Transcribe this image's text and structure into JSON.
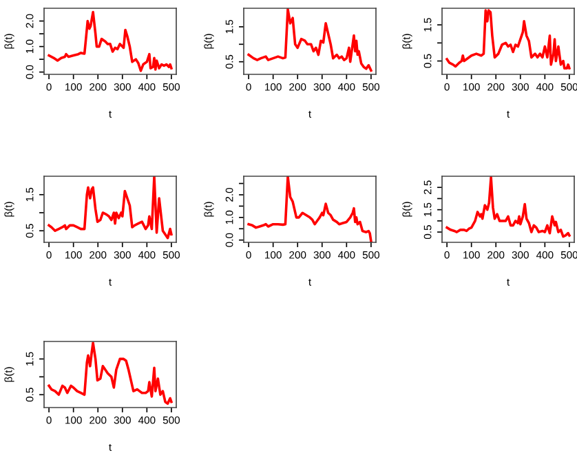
{
  "chart_data": [
    {
      "type": "line",
      "xlabel": "t",
      "ylabel": "β(t)",
      "xlim": [
        -20,
        520
      ],
      "ylim": [
        -0.09,
        2.5
      ],
      "xticks": [
        0,
        100,
        200,
        300,
        400,
        500
      ],
      "yticks": [
        {
          "value": 0.0,
          "label": "0.0"
        },
        {
          "value": 0.5,
          "label": null
        },
        {
          "value": 1.0,
          "label": "1.0"
        },
        {
          "value": 1.5,
          "label": null
        },
        {
          "value": 2.0,
          "label": "2.0"
        }
      ],
      "x": [
        0,
        20,
        35,
        50,
        65,
        70,
        80,
        100,
        120,
        130,
        145,
        150,
        158,
        165,
        170,
        180,
        190,
        195,
        205,
        215,
        230,
        240,
        250,
        260,
        270,
        280,
        290,
        300,
        305,
        312,
        320,
        330,
        340,
        355,
        365,
        375,
        385,
        400,
        410,
        415,
        425,
        430,
        435,
        440,
        450,
        460,
        470,
        480,
        490,
        495,
        500
      ],
      "series": [
        {
          "color": "#ff0000",
          "values": [
            0.65,
            0.55,
            0.45,
            0.55,
            0.6,
            0.7,
            0.6,
            0.65,
            0.7,
            0.75,
            0.72,
            1.2,
            2.0,
            1.7,
            1.8,
            2.35,
            1.5,
            1.0,
            1.0,
            1.3,
            1.2,
            1.1,
            1.1,
            0.8,
            0.95,
            0.9,
            1.1,
            1.0,
            0.95,
            1.65,
            1.4,
            1.0,
            0.4,
            0.5,
            0.35,
            0.05,
            0.3,
            0.4,
            0.7,
            0.15,
            0.2,
            0.55,
            0.1,
            0.45,
            0.15,
            0.3,
            0.25,
            0.3,
            0.2,
            0.3,
            0.15
          ]
        }
      ]
    },
    {
      "type": "line",
      "xlabel": "t",
      "ylabel": "β(t)",
      "xlim": [
        -20,
        520
      ],
      "ylim": [
        0.14,
        2.03
      ],
      "xticks": [
        0,
        100,
        200,
        300,
        400,
        500
      ],
      "yticks": [
        {
          "value": 0.5,
          "label": "0.5"
        },
        {
          "value": 1.0,
          "label": null
        },
        {
          "value": 1.5,
          "label": "1.5"
        }
      ],
      "x": [
        0,
        20,
        35,
        50,
        70,
        80,
        100,
        120,
        140,
        150,
        160,
        170,
        180,
        190,
        200,
        215,
        230,
        240,
        255,
        265,
        275,
        285,
        295,
        305,
        315,
        325,
        335,
        345,
        360,
        370,
        380,
        390,
        400,
        410,
        415,
        425,
        430,
        435,
        440,
        445,
        450,
        460,
        470,
        480,
        490,
        500
      ],
      "series": [
        {
          "color": "#ff0000",
          "values": [
            0.7,
            0.6,
            0.55,
            0.6,
            0.65,
            0.55,
            0.6,
            0.65,
            0.6,
            0.62,
            2.0,
            1.6,
            1.75,
            1.0,
            0.9,
            1.15,
            1.1,
            1.0,
            1.0,
            0.8,
            0.9,
            0.7,
            1.1,
            1.05,
            1.6,
            1.3,
            1.0,
            0.6,
            0.7,
            0.6,
            0.65,
            0.55,
            0.6,
            0.9,
            0.5,
            1.0,
            1.25,
            0.8,
            1.1,
            0.7,
            0.8,
            0.45,
            0.35,
            0.3,
            0.4,
            0.25
          ]
        }
      ]
    },
    {
      "type": "line",
      "xlabel": "t",
      "ylabel": "β(t)",
      "xlim": [
        -20,
        520
      ],
      "ylim": [
        0.13,
        1.96
      ],
      "xticks": [
        0,
        100,
        200,
        300,
        400,
        500
      ],
      "yticks": [
        {
          "value": 0.5,
          "label": "0.5"
        },
        {
          "value": 1.0,
          "label": null
        },
        {
          "value": 1.5,
          "label": "1.5"
        }
      ],
      "x": [
        0,
        10,
        25,
        35,
        50,
        60,
        65,
        70,
        80,
        100,
        120,
        140,
        150,
        158,
        165,
        170,
        178,
        185,
        195,
        210,
        225,
        240,
        250,
        260,
        270,
        280,
        290,
        300,
        310,
        315,
        325,
        335,
        345,
        360,
        370,
        380,
        390,
        400,
        410,
        420,
        425,
        435,
        440,
        445,
        455,
        465,
        475,
        480,
        490,
        495,
        500
      ],
      "series": [
        {
          "color": "#ff0000",
          "values": [
            0.55,
            0.45,
            0.4,
            0.35,
            0.45,
            0.5,
            0.65,
            0.5,
            0.55,
            0.65,
            0.7,
            0.65,
            0.7,
            1.9,
            1.6,
            1.9,
            1.85,
            1.2,
            0.6,
            0.7,
            0.95,
            1.0,
            0.9,
            0.95,
            0.75,
            0.95,
            0.9,
            1.1,
            1.3,
            1.6,
            1.2,
            1.05,
            0.6,
            0.7,
            0.6,
            0.7,
            0.6,
            0.9,
            0.6,
            1.2,
            0.4,
            0.7,
            1.1,
            0.5,
            0.9,
            0.4,
            0.5,
            0.3,
            0.3,
            0.4,
            0.3
          ]
        }
      ]
    },
    {
      "type": "line",
      "xlabel": "t",
      "ylabel": "β(t)",
      "xlim": [
        -20,
        520
      ],
      "ylim": [
        0.18,
        2.01
      ],
      "xticks": [
        0,
        100,
        200,
        300,
        400,
        500
      ],
      "yticks": [
        {
          "value": 0.5,
          "label": "0.5"
        },
        {
          "value": 1.0,
          "label": null
        },
        {
          "value": 1.5,
          "label": "1.5"
        }
      ],
      "x": [
        0,
        10,
        25,
        40,
        55,
        65,
        70,
        85,
        100,
        115,
        130,
        145,
        155,
        160,
        168,
        175,
        180,
        190,
        198,
        210,
        220,
        235,
        245,
        255,
        265,
        270,
        275,
        285,
        295,
        300,
        310,
        320,
        330,
        340,
        350,
        365,
        380,
        395,
        405,
        410,
        420,
        430,
        440,
        450,
        460,
        465,
        475,
        485,
        495,
        500
      ],
      "series": [
        {
          "color": "#ff0000",
          "values": [
            0.65,
            0.6,
            0.5,
            0.55,
            0.6,
            0.65,
            0.55,
            0.65,
            0.65,
            0.6,
            0.55,
            0.55,
            1.5,
            1.7,
            1.4,
            1.65,
            1.7,
            1.1,
            0.75,
            0.8,
            1.0,
            0.95,
            0.9,
            0.8,
            1.0,
            0.7,
            1.0,
            0.85,
            1.0,
            0.9,
            1.6,
            1.4,
            1.2,
            0.6,
            0.65,
            0.7,
            0.75,
            0.55,
            0.65,
            0.9,
            0.55,
            2.0,
            0.45,
            1.4,
            0.8,
            0.5,
            0.4,
            0.3,
            0.55,
            0.4
          ]
        }
      ]
    },
    {
      "type": "line",
      "xlabel": "t",
      "ylabel": "β(t)",
      "xlim": [
        -20,
        520
      ],
      "ylim": [
        -0.1,
        2.82
      ],
      "xticks": [
        0,
        100,
        200,
        300,
        400,
        500
      ],
      "yticks": [
        {
          "value": 0.0,
          "label": "0.0"
        },
        {
          "value": 0.5,
          "label": null
        },
        {
          "value": 1.0,
          "label": "1.0"
        },
        {
          "value": 1.5,
          "label": null
        },
        {
          "value": 2.0,
          "label": "2.0"
        },
        {
          "value": 2.5,
          "label": null
        }
      ],
      "x": [
        0,
        15,
        30,
        45,
        60,
        70,
        80,
        100,
        120,
        140,
        150,
        160,
        170,
        180,
        195,
        205,
        220,
        235,
        250,
        260,
        270,
        280,
        290,
        300,
        305,
        315,
        325,
        335,
        345,
        360,
        370,
        385,
        400,
        415,
        425,
        430,
        435,
        440,
        445,
        455,
        465,
        480,
        490,
        495,
        500
      ],
      "series": [
        {
          "color": "#ff0000",
          "values": [
            0.7,
            0.65,
            0.55,
            0.6,
            0.65,
            0.7,
            0.6,
            0.7,
            0.7,
            0.68,
            0.7,
            2.8,
            1.9,
            1.7,
            1.0,
            1.0,
            1.2,
            1.1,
            1.0,
            0.9,
            0.7,
            0.85,
            1.0,
            1.2,
            1.1,
            1.6,
            1.2,
            1.1,
            0.9,
            0.8,
            0.7,
            0.75,
            0.8,
            1.0,
            1.2,
            1.4,
            0.8,
            1.0,
            0.7,
            0.8,
            0.4,
            0.35,
            0.4,
            0.3,
            -0.05
          ]
        }
      ]
    },
    {
      "type": "line",
      "xlabel": "t",
      "ylabel": "β(t)",
      "xlim": [
        -20,
        520
      ],
      "ylim": [
        0.04,
        3.0
      ],
      "xticks": [
        0,
        100,
        200,
        300,
        400,
        500
      ],
      "yticks": [
        {
          "value": 0.5,
          "label": "0.5"
        },
        {
          "value": 1.0,
          "label": null
        },
        {
          "value": 1.5,
          "label": "1.5"
        },
        {
          "value": 2.0,
          "label": null
        },
        {
          "value": 2.5,
          "label": "2.5"
        }
      ],
      "x": [
        0,
        15,
        30,
        40,
        55,
        70,
        80,
        90,
        100,
        115,
        125,
        135,
        140,
        145,
        155,
        165,
        172,
        180,
        188,
        195,
        205,
        215,
        230,
        240,
        250,
        260,
        270,
        280,
        290,
        295,
        300,
        310,
        318,
        325,
        335,
        345,
        355,
        365,
        375,
        390,
        400,
        410,
        420,
        430,
        440,
        445,
        455,
        465,
        475,
        485,
        495,
        500
      ],
      "series": [
        {
          "color": "#ff0000",
          "values": [
            0.7,
            0.6,
            0.55,
            0.5,
            0.6,
            0.6,
            0.55,
            0.65,
            0.7,
            1.0,
            1.4,
            1.2,
            1.3,
            1.1,
            1.7,
            1.5,
            1.8,
            2.95,
            1.6,
            1.1,
            1.3,
            1.0,
            1.0,
            1.0,
            1.2,
            0.8,
            0.8,
            1.0,
            0.9,
            1.2,
            0.85,
            1.2,
            1.75,
            1.1,
            0.9,
            0.5,
            0.8,
            0.7,
            0.5,
            0.55,
            0.5,
            0.8,
            0.45,
            1.2,
            0.8,
            0.95,
            0.5,
            0.6,
            0.3,
            0.35,
            0.45,
            0.35
          ]
        }
      ]
    },
    {
      "type": "line",
      "xlabel": "t",
      "ylabel": "β(t)",
      "xlim": [
        -20,
        520
      ],
      "ylim": [
        0.14,
        1.99
      ],
      "xticks": [
        0,
        100,
        200,
        300,
        400,
        500
      ],
      "yticks": [
        {
          "value": 0.5,
          "label": "0.5"
        },
        {
          "value": 1.0,
          "label": null
        },
        {
          "value": 1.5,
          "label": "1.5"
        }
      ],
      "x": [
        0,
        10,
        25,
        40,
        55,
        65,
        75,
        90,
        100,
        115,
        130,
        145,
        155,
        160,
        168,
        175,
        180,
        190,
        198,
        210,
        220,
        230,
        240,
        255,
        265,
        275,
        290,
        305,
        315,
        325,
        335,
        345,
        360,
        370,
        380,
        395,
        405,
        410,
        420,
        430,
        435,
        445,
        455,
        465,
        475,
        485,
        495,
        500
      ],
      "series": [
        {
          "color": "#ff0000",
          "values": [
            0.75,
            0.65,
            0.6,
            0.5,
            0.75,
            0.7,
            0.55,
            0.75,
            0.7,
            0.6,
            0.55,
            0.5,
            1.4,
            1.6,
            1.3,
            1.7,
            1.95,
            1.5,
            0.9,
            0.95,
            1.3,
            1.2,
            1.1,
            1.0,
            0.7,
            1.2,
            1.5,
            1.5,
            1.45,
            1.2,
            0.9,
            0.6,
            0.65,
            0.6,
            0.55,
            0.55,
            0.6,
            0.85,
            0.45,
            1.25,
            0.6,
            0.95,
            0.5,
            0.6,
            0.3,
            0.25,
            0.4,
            0.3
          ]
        }
      ]
    }
  ]
}
